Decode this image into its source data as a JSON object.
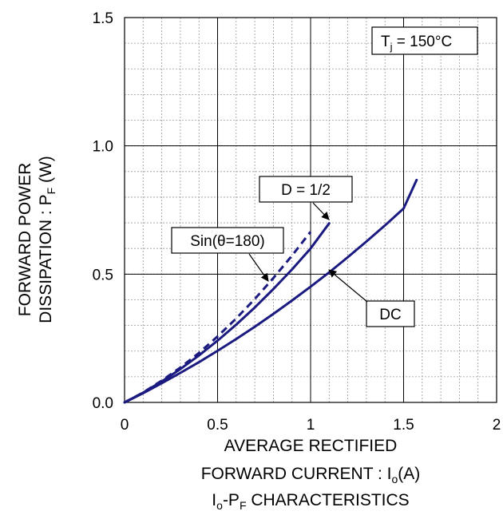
{
  "chart_data": {
    "type": "line",
    "title": "",
    "caption": {
      "prefix": "I",
      "prefix_sub": "o",
      "mid": "-P",
      "mid_sub": "F",
      "suffix": " CHARACTERISTICS"
    },
    "xlabel": {
      "line1": "AVERAGE RECTIFIED",
      "line2_prefix": "FORWARD CURRENT : I",
      "line2_sub": "o",
      "line2_suffix": "(A)"
    },
    "ylabel": {
      "line1": "FORWARD POWER",
      "line2_prefix": "DISSIPATION : P",
      "line2_sub": "F",
      "line2_suffix": " (W)"
    },
    "xlim": [
      0,
      2
    ],
    "ylim": [
      0,
      1.5
    ],
    "x_ticks": [
      0,
      0.5,
      1,
      1.5,
      2
    ],
    "x_tick_labels": [
      "0",
      "0.5",
      "1",
      "1.5",
      "2"
    ],
    "y_ticks": [
      0.0,
      0.5,
      1.0,
      1.5
    ],
    "y_tick_labels": [
      "0.0",
      "0.5",
      "1.0",
      "1.5"
    ],
    "grid": {
      "major": true,
      "minor": true,
      "minor_x_step": 0.1,
      "minor_y_step": 0.1
    },
    "condition": {
      "prefix": "T",
      "sub": "j",
      "suffix": " = 150°C"
    },
    "series": [
      {
        "name": "DC",
        "style": "solid",
        "color": "#1a1a80",
        "x": [
          0,
          0.1,
          0.2,
          0.3,
          0.4,
          0.5,
          0.6,
          0.7,
          0.8,
          0.9,
          1.0,
          1.1,
          1.2,
          1.3,
          1.4,
          1.5,
          1.57
        ],
        "y": [
          0,
          0.036,
          0.075,
          0.115,
          0.157,
          0.201,
          0.247,
          0.295,
          0.345,
          0.397,
          0.451,
          0.507,
          0.566,
          0.627,
          0.69,
          0.756,
          0.867
        ]
      },
      {
        "name": "D = 1/2",
        "style": "solid",
        "color": "#1a1a80",
        "x": [
          0,
          0.1,
          0.2,
          0.3,
          0.4,
          0.5,
          0.6,
          0.7,
          0.8,
          0.9,
          1.0,
          1.1
        ],
        "y": [
          0,
          0.038,
          0.082,
          0.13,
          0.183,
          0.241,
          0.303,
          0.37,
          0.442,
          0.518,
          0.6,
          0.698
        ]
      },
      {
        "name": "Sin(θ=180)",
        "style": "dashed",
        "color": "#1a1a80",
        "x": [
          0,
          0.1,
          0.2,
          0.3,
          0.4,
          0.5,
          0.6,
          0.7,
          0.8,
          0.9,
          1.0
        ],
        "y": [
          0,
          0.039,
          0.085,
          0.136,
          0.193,
          0.257,
          0.327,
          0.403,
          0.485,
          0.572,
          0.665
        ]
      }
    ],
    "annotations": [
      {
        "text": "D = 1/2",
        "points_to": "D = 1/2"
      },
      {
        "text": "Sin(θ=180)",
        "points_to": "Sin(θ=180)"
      },
      {
        "text": "DC",
        "points_to": "DC"
      }
    ]
  }
}
